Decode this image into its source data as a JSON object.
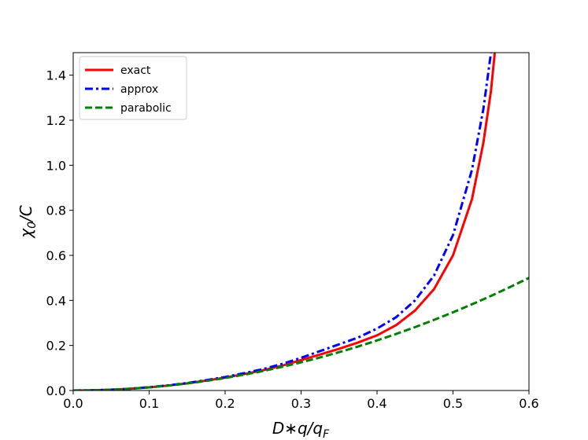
{
  "chart_data": {
    "type": "line",
    "xlabel": [
      "D∗q/q",
      "F"
    ],
    "ylabel": [
      "χ",
      "0",
      "/C"
    ],
    "x": [
      0,
      0.025,
      0.05,
      0.075,
      0.1,
      0.125,
      0.15,
      0.175,
      0.2,
      0.225,
      0.25,
      0.275,
      0.3,
      0.325,
      0.35,
      0.375,
      0.4,
      0.425,
      0.45,
      0.475,
      0.5,
      0.525,
      0.54,
      0.55,
      0.555,
      0.575,
      0.6
    ],
    "series": [
      {
        "name": "exact",
        "color": "#ff0000",
        "dash": "solid",
        "values": [
          0,
          0.0008,
          0.0035,
          0.0078,
          0.014,
          0.022,
          0.032,
          0.044,
          0.057,
          0.073,
          0.09,
          0.11,
          0.135,
          0.16,
          0.185,
          0.213,
          0.245,
          0.29,
          0.355,
          0.45,
          0.6,
          0.85,
          1.1,
          1.33,
          1.5,
          null,
          null
        ]
      },
      {
        "name": "approx",
        "color": "#0000ff",
        "dash": "dashdot",
        "values": [
          0,
          0.0008,
          0.0036,
          0.008,
          0.0145,
          0.023,
          0.033,
          0.046,
          0.06,
          0.077,
          0.095,
          0.118,
          0.145,
          0.175,
          0.205,
          0.235,
          0.275,
          0.325,
          0.4,
          0.51,
          0.69,
          0.98,
          1.25,
          1.5,
          null,
          null,
          null
        ]
      },
      {
        "name": "parabolic",
        "color": "#008000",
        "dash": "dashed",
        "values": [
          0,
          0.0009,
          0.0035,
          0.0078,
          0.0139,
          0.0217,
          0.0313,
          0.0425,
          0.0556,
          0.0703,
          0.0868,
          0.105,
          0.125,
          0.1467,
          0.1701,
          0.1953,
          0.2222,
          0.2509,
          0.2813,
          0.3134,
          0.3472,
          0.3828,
          0.405,
          0.4201,
          0.4278,
          0.4592,
          0.5
        ]
      }
    ],
    "xlim": [
      0,
      0.6
    ],
    "ylim": [
      0,
      1.5
    ],
    "xticks": [
      {
        "value": 0,
        "label": "0.0"
      },
      0.1,
      0.2,
      0.3,
      0.4,
      0.5,
      0.6
    ],
    "yticks": [
      {
        "value": 0,
        "label": "0.0"
      },
      0.2,
      0.4,
      0.6,
      0.8,
      {
        "value": 1,
        "label": "1.0"
      },
      1.2,
      1.4
    ],
    "legend": "upper left"
  }
}
